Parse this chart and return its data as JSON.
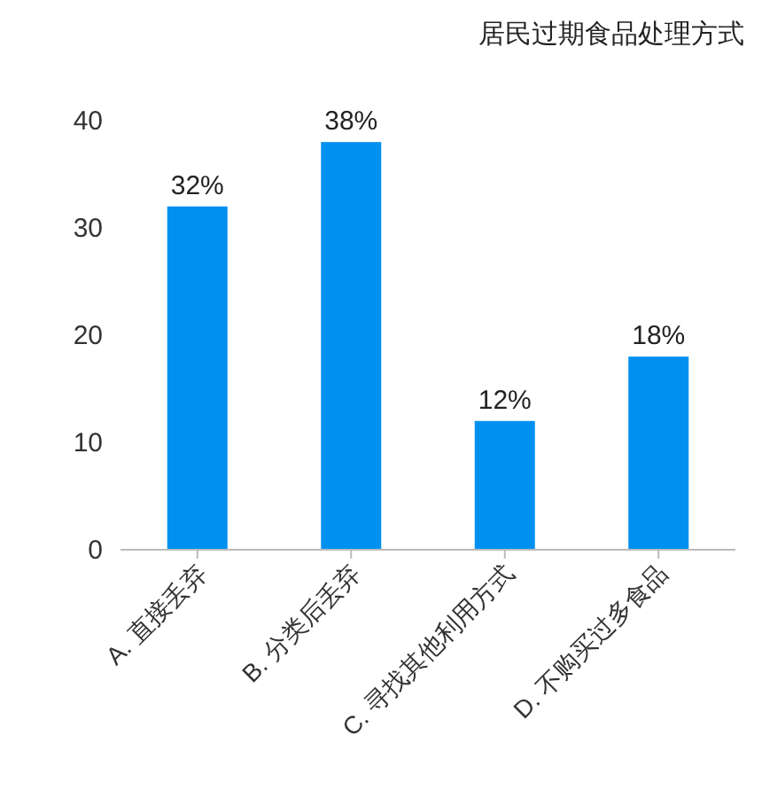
{
  "chart_data": {
    "type": "bar",
    "title": "居民过期食品处理方式",
    "categories": [
      "A. 直接丢弃",
      "B. 分类后丢弃",
      "C. 寻找其他利用方式",
      "D. 不购买过多食品"
    ],
    "values": [
      32,
      38,
      12,
      18
    ],
    "value_labels": [
      "32%",
      "38%",
      "12%",
      "18%"
    ],
    "color": "#0090f0",
    "ylim": [
      0,
      40
    ],
    "yticks": [
      0,
      10,
      20,
      30,
      40
    ]
  }
}
